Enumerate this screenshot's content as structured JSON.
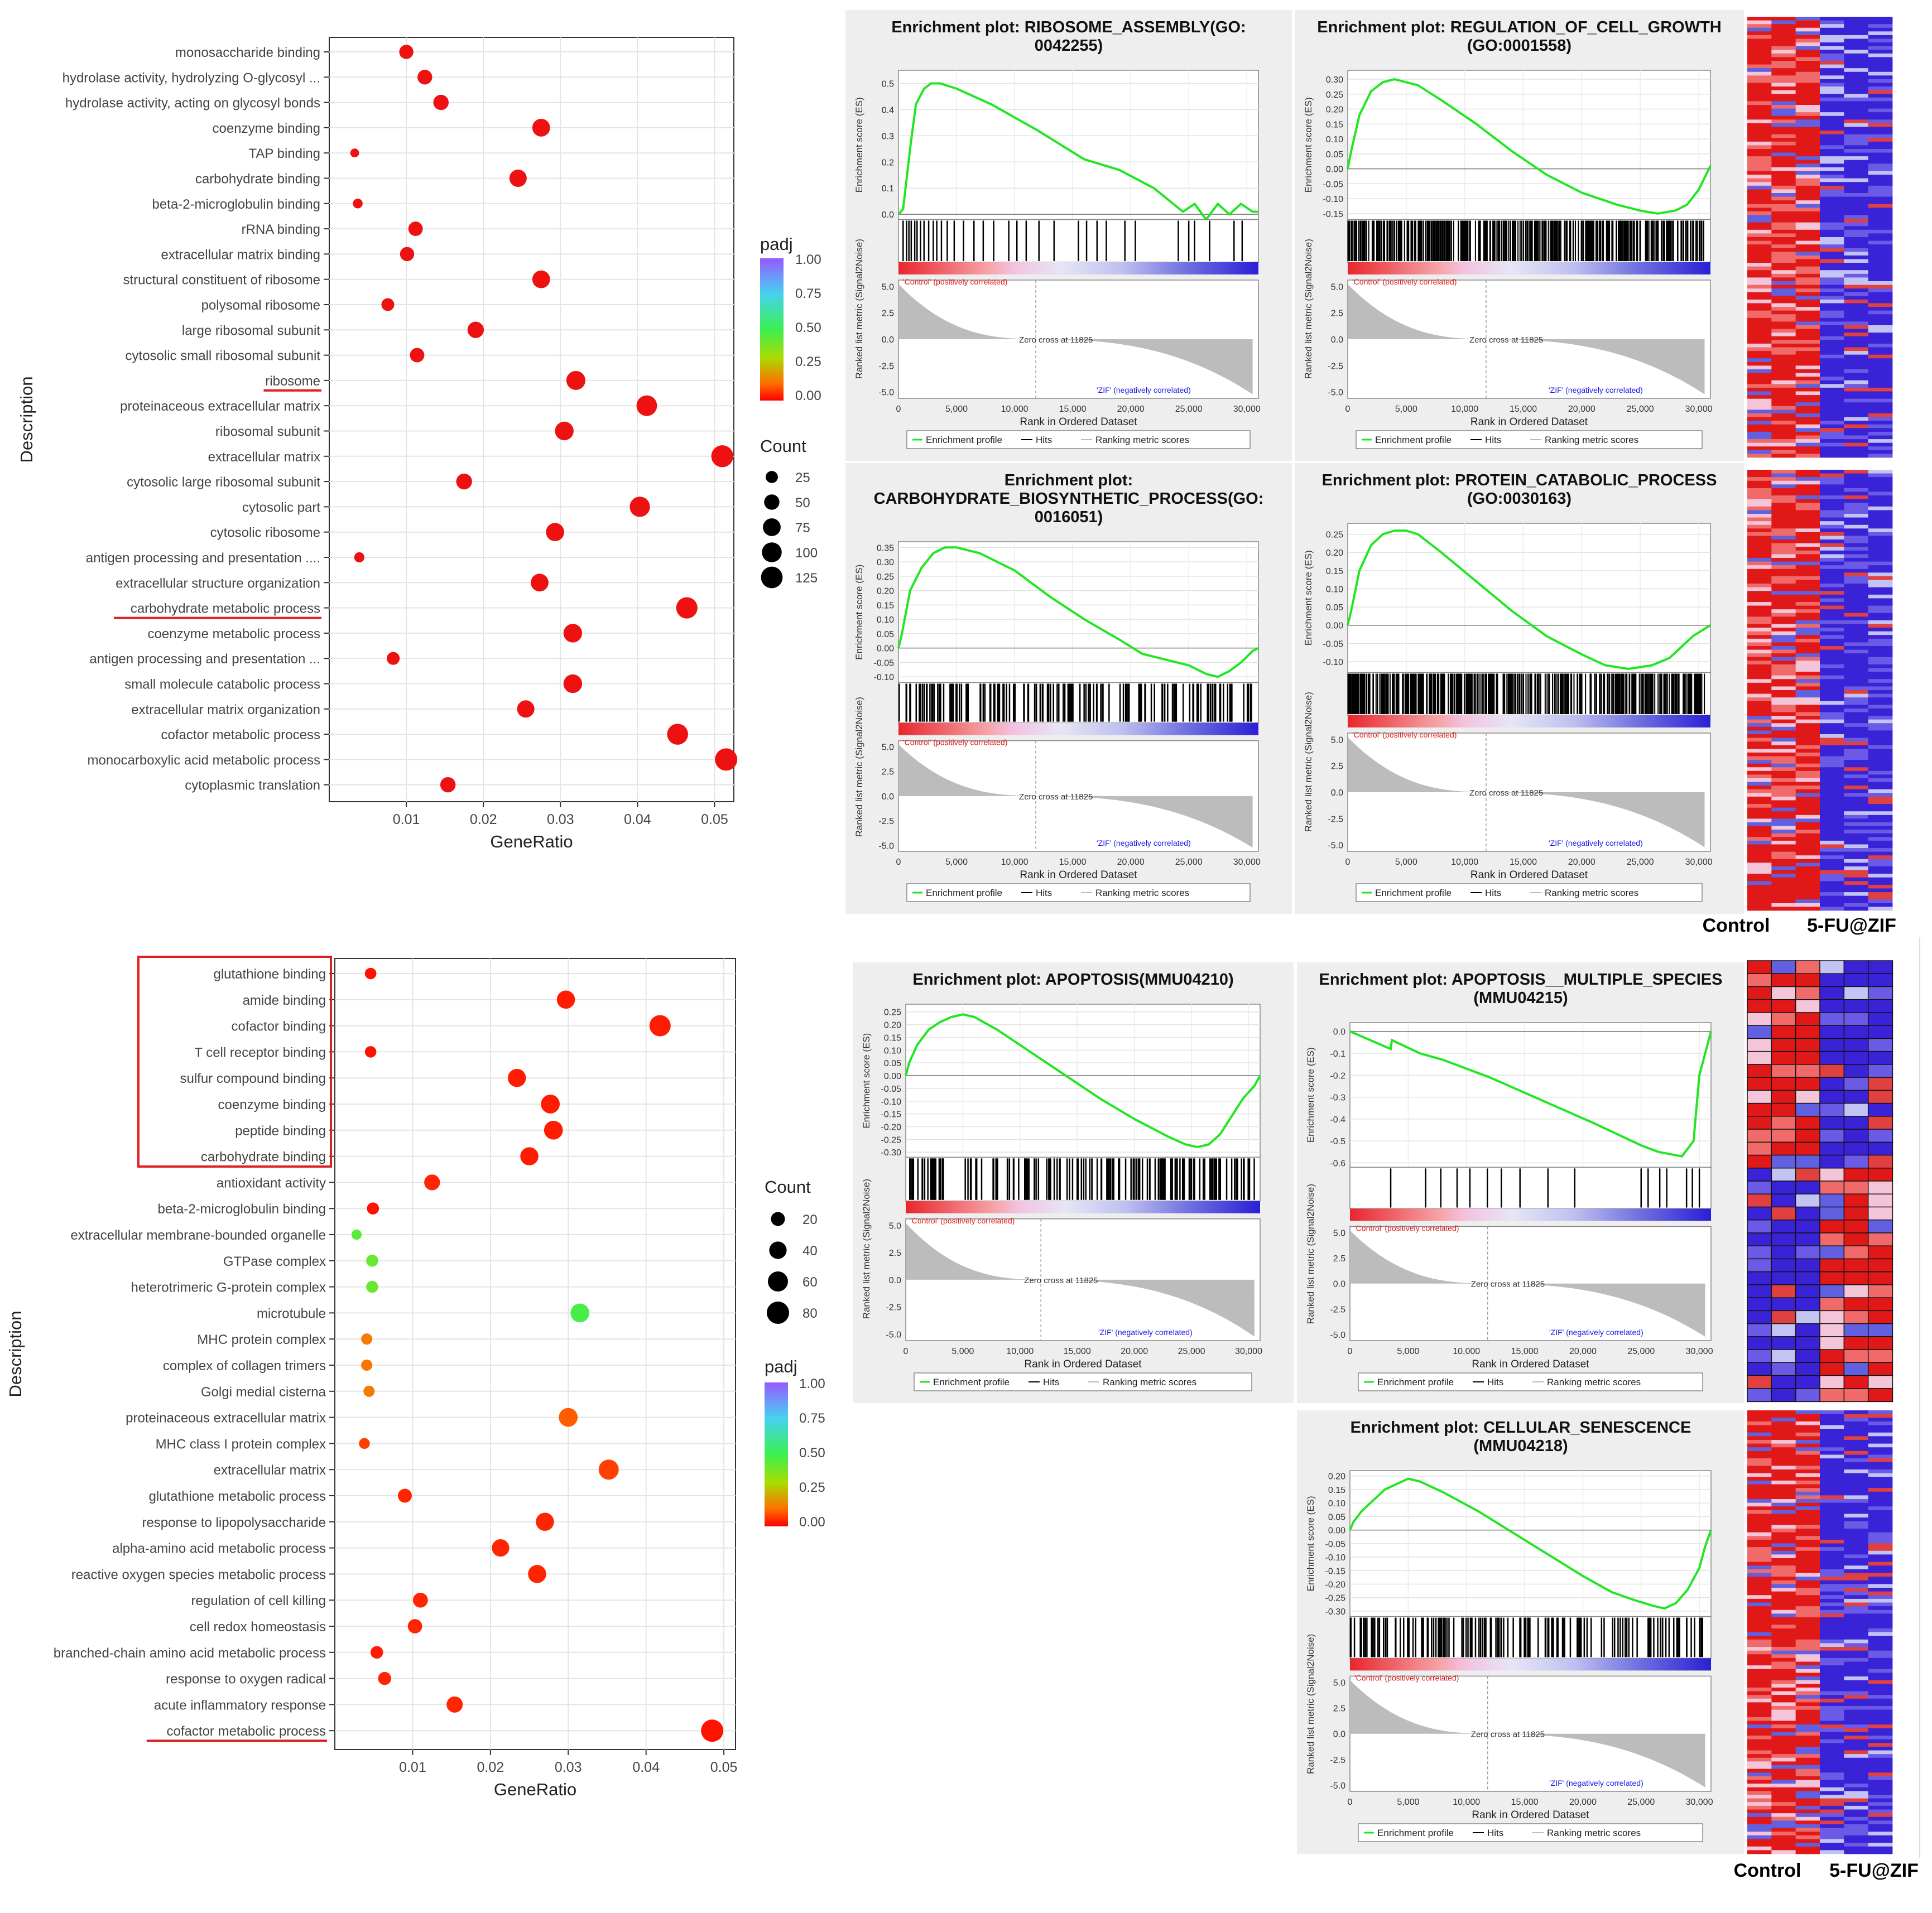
{
  "chart_data": [
    {
      "type": "scatter",
      "panel": "dotplot-top",
      "xlabel": "GeneRatio",
      "ylabel": "Description",
      "xlim": [
        0.0,
        0.0525
      ],
      "xticks": [
        0.01,
        0.02,
        0.03,
        0.04,
        0.05
      ],
      "xtick_labels": [
        "0.01",
        "0.02",
        "0.03",
        "0.04",
        "0.05"
      ],
      "categories": [
        "monosaccharide binding",
        "hydrolase activity, hydrolyzing O-glycosyl ...",
        "hydrolase activity, acting on glycosyl bonds",
        "coenzyme binding",
        "TAP binding",
        "carbohydrate binding",
        "beta-2-microglobulin binding",
        "rRNA binding",
        "extracellular matrix binding",
        "structural constituent of ribosome",
        "polysomal ribosome",
        "large ribosomal subunit",
        "cytosolic small ribosomal subunit",
        "ribosome",
        "proteinaceous extracellular matrix",
        "ribosomal subunit",
        "extracellular matrix",
        "cytosolic large ribosomal subunit",
        "cytosolic part",
        "cytosolic ribosome",
        "antigen processing and presentation ....",
        "extracellular structure organization",
        "carbohydrate metabolic process",
        "coenzyme metabolic process",
        "antigen processing and presentation ...",
        "small molecule catabolic process",
        "extracellular matrix organization",
        "cofactor metabolic process",
        "monocarboxylic acid metabolic process",
        "cytoplasmic translation"
      ],
      "gene_ratio": [
        0.01,
        0.0124,
        0.0145,
        0.0275,
        0.0033,
        0.0245,
        0.0037,
        0.0112,
        0.0101,
        0.0275,
        0.0076,
        0.019,
        0.0114,
        0.032,
        0.0412,
        0.0305,
        0.051,
        0.0175,
        0.0403,
        0.0293,
        0.0039,
        0.0273,
        0.0464,
        0.0316,
        0.0083,
        0.0316,
        0.0255,
        0.0452,
        0.0515,
        0.0154
      ],
      "count": [
        40,
        45,
        50,
        75,
        8,
        70,
        12,
        42,
        40,
        75,
        30,
        60,
        42,
        90,
        110,
        85,
        130,
        55,
        105,
        80,
        14,
        75,
        120,
        85,
        30,
        85,
        70,
        115,
        135,
        50
      ],
      "highlighted": [
        "ribosome",
        "carbohydrate metabolic process"
      ],
      "legend_padj": {
        "title": "padj",
        "ticks": [
          "1.00",
          "0.75",
          "0.50",
          "0.25",
          "0.00"
        ]
      },
      "legend_count": {
        "title": "Count",
        "values": [
          25,
          50,
          75,
          100,
          125
        ],
        "labels": [
          "25",
          "50",
          "75",
          "100",
          "125"
        ]
      }
    },
    {
      "type": "scatter",
      "panel": "dotplot-bottom",
      "xlabel": "GeneRatio",
      "ylabel": "Description",
      "xlim": [
        0.0,
        0.0515
      ],
      "xticks": [
        0.01,
        0.02,
        0.03,
        0.04,
        0.05
      ],
      "xtick_labels": [
        "0.01",
        "0.02",
        "0.03",
        "0.04",
        "0.05"
      ],
      "categories": [
        "glutathione binding",
        "amide binding",
        "cofactor binding",
        "T cell receptor binding",
        "sulfur compound binding",
        "coenzyme binding",
        "peptide binding",
        "carbohydrate binding",
        "antioxidant activity",
        "beta-2-microglobulin binding",
        "extracellular membrane-bounded organelle",
        "GTPase complex",
        "heterotrimeric G-protein complex",
        "microtubule",
        "MHC protein complex",
        "complex of collagen trimers",
        "Golgi medial cisterna",
        "proteinaceous extracellular matrix",
        "MHC class I protein complex",
        "extracellular matrix",
        "glutathione metabolic process",
        "response to lipopolysaccharide",
        "alpha-amino acid metabolic process",
        "reactive oxygen species metabolic process",
        "regulation of cell killing",
        "cell redox homeostasis",
        "branched-chain amino acid metabolic process",
        "response to oxygen radical",
        "acute inflammatory response",
        "cofactor metabolic process"
      ],
      "gene_ratio": [
        0.0046,
        0.0297,
        0.0418,
        0.0046,
        0.0234,
        0.0277,
        0.0281,
        0.025,
        0.0125,
        0.0049,
        0.0028,
        0.0048,
        0.0048,
        0.0315,
        0.0041,
        0.0041,
        0.0044,
        0.03,
        0.0038,
        0.0352,
        0.009,
        0.027,
        0.0213,
        0.026,
        0.011,
        0.0103,
        0.0054,
        0.0064,
        0.0154,
        0.0485
      ],
      "count": [
        10,
        45,
        70,
        10,
        45,
        50,
        50,
        45,
        30,
        12,
        6,
        12,
        12,
        50,
        9,
        9,
        9,
        50,
        8,
        60,
        20,
        45,
        40,
        45,
        25,
        22,
        14,
        16,
        32,
        80
      ],
      "padj": [
        0.02,
        0.03,
        0.03,
        0.02,
        0.03,
        0.03,
        0.03,
        0.03,
        0.04,
        0.02,
        0.45,
        0.42,
        0.42,
        0.48,
        0.14,
        0.13,
        0.14,
        0.1,
        0.07,
        0.07,
        0.04,
        0.04,
        0.04,
        0.04,
        0.04,
        0.04,
        0.03,
        0.04,
        0.04,
        0.02
      ],
      "highlighted": [
        "cofactor metabolic process"
      ],
      "boxed": [
        "glutathione binding",
        "amide binding",
        "cofactor binding",
        "T cell receptor binding",
        "sulfur compound binding",
        "coenzyme binding",
        "peptide binding",
        "carbohydrate binding"
      ],
      "legend_count": {
        "title": "Count",
        "values": [
          20,
          40,
          60,
          80
        ],
        "labels": [
          "20",
          "40",
          "60",
          "80"
        ]
      },
      "legend_padj": {
        "title": "padj",
        "ticks": [
          "1.00",
          "0.75",
          "0.50",
          "0.25",
          "0.00"
        ]
      }
    },
    {
      "type": "line",
      "panel": "gsea",
      "plots": [
        {
          "title": "Enrichment plot: RIBOSOME_ASSEMBLY(GO: 0042255)",
          "title_lines": [
            "Enrichment plot: RIBOSOME_ASSEMBLY(GO:",
            "0042255)"
          ],
          "ylim": [
            -0.02,
            0.55
          ],
          "yticks": [
            "0.5",
            "0.4",
            "0.3",
            "0.2",
            "0.1",
            "0.0"
          ],
          "es_x": [
            0,
            400,
            1000,
            1500,
            2200,
            2800,
            3600,
            5000,
            8000,
            12000,
            16000,
            19000,
            22000,
            24500,
            25500,
            26500,
            27500,
            28500,
            29500,
            30500,
            31000
          ],
          "es_y": [
            0,
            0.02,
            0.25,
            0.42,
            0.48,
            0.5,
            0.5,
            0.48,
            0.42,
            0.32,
            0.21,
            0.17,
            0.1,
            0.01,
            0.04,
            -0.02,
            0.04,
            0.0,
            0.04,
            0.01,
            0.01
          ],
          "hits": [
            400,
            700,
            900,
            1100,
            1400,
            1600,
            1900,
            2200,
            2600,
            3000,
            3300,
            3700,
            4200,
            4800,
            5600,
            6500,
            7300,
            8200,
            9500,
            10200,
            11000,
            12100,
            13400,
            15500,
            16200,
            17100,
            17900,
            19500,
            20400,
            24100,
            25000,
            25500,
            26800,
            28900,
            29600
          ],
          "zero_cross": "Zero cross at 11825"
        },
        {
          "title": "Enrichment plot: REGULATION_OF_CELL_GROWTH (GO:0001558)",
          "title_lines": [
            "Enrichment plot: REGULATION_OF_CELL_GROWTH",
            "(GO:0001558)"
          ],
          "ylim": [
            -0.17,
            0.33
          ],
          "yticks": [
            "0.30",
            "0.25",
            "0.20",
            "0.15",
            "0.10",
            "0.05",
            "0.00",
            "-0.05",
            "-0.10",
            "-0.15"
          ],
          "es_x": [
            0,
            300,
            1000,
            2000,
            3000,
            4000,
            5000,
            6000,
            8000,
            11000,
            14000,
            17000,
            20000,
            23000,
            25000,
            26500,
            28000,
            29000,
            30000,
            30500,
            31000
          ],
          "es_y": [
            0,
            0.06,
            0.18,
            0.26,
            0.29,
            0.3,
            0.29,
            0.28,
            0.23,
            0.15,
            0.06,
            -0.02,
            -0.08,
            -0.12,
            -0.14,
            -0.15,
            -0.14,
            -0.12,
            -0.07,
            -0.03,
            0.01
          ],
          "hits": "dense",
          "zero_cross": "Zero cross at 11825"
        },
        {
          "title": "Enrichment plot: CARBOHYDRATE_BIOSYNTHETIC_PROCESS(GO: 0016051)",
          "title_lines": [
            "Enrichment plot:",
            "CARBOHYDRATE_BIOSYNTHETIC_PROCESS(GO:",
            "0016051)"
          ],
          "ylim": [
            -0.12,
            0.37
          ],
          "yticks": [
            "0.35",
            "0.30",
            "0.25",
            "0.20",
            "0.15",
            "0.10",
            "0.05",
            "0.00",
            "-0.05",
            "-0.10"
          ],
          "es_x": [
            0,
            300,
            1000,
            2000,
            3000,
            4000,
            5000,
            7000,
            10000,
            13000,
            16000,
            19000,
            21000,
            23000,
            25000,
            26500,
            27500,
            28500,
            29500,
            30500,
            31000
          ],
          "es_y": [
            0,
            0.05,
            0.2,
            0.28,
            0.33,
            0.35,
            0.35,
            0.33,
            0.27,
            0.18,
            0.1,
            0.03,
            -0.02,
            -0.04,
            -0.06,
            -0.09,
            -0.1,
            -0.08,
            -0.05,
            -0.01,
            0.0
          ],
          "hits": "medium",
          "zero_cross": "Zero cross at 11825"
        },
        {
          "title": "Enrichment plot: PROTEIN_CATABOLIC_PROCESS (GO:0030163)",
          "title_lines": [
            "Enrichment plot: PROTEIN_CATABOLIC_PROCESS",
            "(GO:0030163)"
          ],
          "ylim": [
            -0.13,
            0.28
          ],
          "yticks": [
            "0.25",
            "0.20",
            "0.15",
            "0.10",
            "0.05",
            "0.00",
            "-0.05",
            "-0.10"
          ],
          "es_x": [
            0,
            300,
            1000,
            2000,
            3000,
            4000,
            5000,
            6000,
            8000,
            11000,
            14000,
            17000,
            20000,
            22000,
            24000,
            26000,
            27500,
            28500,
            29500,
            30500,
            31000
          ],
          "es_y": [
            0,
            0.04,
            0.15,
            0.22,
            0.25,
            0.26,
            0.26,
            0.25,
            0.2,
            0.12,
            0.04,
            -0.03,
            -0.08,
            -0.11,
            -0.12,
            -0.11,
            -0.09,
            -0.06,
            -0.03,
            -0.01,
            0.0
          ],
          "hits": "dense",
          "zero_cross": "Zero cross at 11825"
        },
        {
          "title": "Enrichment plot: APOPTOSIS(MMU04210)",
          "title_lines": [
            "Enrichment plot: APOPTOSIS(MMU04210)"
          ],
          "ylim": [
            -0.32,
            0.28
          ],
          "yticks": [
            "0.25",
            "0.20",
            "0.15",
            "0.10",
            "0.05",
            "0.00",
            "-0.05",
            "-0.10",
            "-0.15",
            "-0.20",
            "-0.25",
            "-0.30"
          ],
          "es_x": [
            0,
            300,
            1000,
            2000,
            3000,
            4000,
            5000,
            6000,
            8000,
            11000,
            14000,
            17000,
            20000,
            23000,
            24500,
            25500,
            26500,
            27500,
            28500,
            29500,
            30500,
            31000
          ],
          "es_y": [
            0,
            0.05,
            0.12,
            0.18,
            0.21,
            0.23,
            0.24,
            0.23,
            0.18,
            0.09,
            0.0,
            -0.09,
            -0.17,
            -0.24,
            -0.27,
            -0.28,
            -0.27,
            -0.23,
            -0.16,
            -0.09,
            -0.04,
            0.0
          ],
          "hits": "medium",
          "zero_cross": "Zero cross at 11825"
        },
        {
          "title": "Enrichment plot: APOPTOSIS__MULTIPLE_SPECIES (MMU04215)",
          "title_lines": [
            "Enrichment plot: APOPTOSIS__MULTIPLE_SPECIES",
            "(MMU04215)"
          ],
          "ylim": [
            -0.62,
            0.04
          ],
          "yticks": [
            "0.0",
            "-0.1",
            "-0.2",
            "-0.3",
            "-0.4",
            "-0.5",
            "-0.6"
          ],
          "es_x": [
            0,
            3500,
            3600,
            6000,
            8000,
            10000,
            12000,
            15000,
            18000,
            21000,
            23000,
            25000,
            25500,
            26500,
            27500,
            28500,
            29500,
            30000,
            30500,
            31000
          ],
          "es_y": [
            0,
            -0.08,
            -0.04,
            -0.1,
            -0.13,
            -0.17,
            -0.21,
            -0.28,
            -0.35,
            -0.42,
            -0.47,
            -0.52,
            -0.53,
            -0.55,
            -0.56,
            -0.57,
            -0.5,
            -0.2,
            -0.1,
            0.0
          ],
          "hits": [
            3500,
            6500,
            7800,
            9200,
            10300,
            11800,
            13000,
            14600,
            17000,
            19300,
            25000,
            25600,
            26600,
            27200,
            28900,
            29400,
            30000
          ],
          "zero_cross": "Zero cross at 11825"
        },
        {
          "title": "Enrichment plot: CELLULAR_SENESCENCE (MMU04218)",
          "title_lines": [
            "Enrichment plot: CELLULAR_SENESCENCE",
            "(MMU04218)"
          ],
          "ylim": [
            -0.32,
            0.22
          ],
          "yticks": [
            "0.20",
            "0.15",
            "0.10",
            "0.05",
            "0.00",
            "-0.05",
            "-0.10",
            "-0.15",
            "-0.20",
            "-0.25",
            "-0.30"
          ],
          "es_x": [
            0,
            300,
            1000,
            2000,
            3000,
            4000,
            5000,
            6000,
            8000,
            11000,
            14000,
            17000,
            20000,
            22500,
            24500,
            26000,
            27000,
            28000,
            29000,
            30000,
            30500,
            31000
          ],
          "es_y": [
            0,
            0.03,
            0.07,
            0.11,
            0.15,
            0.17,
            0.19,
            0.18,
            0.14,
            0.07,
            -0.01,
            -0.09,
            -0.17,
            -0.23,
            -0.26,
            -0.28,
            -0.29,
            -0.27,
            -0.22,
            -0.14,
            -0.06,
            0.0
          ],
          "hits": "medium",
          "zero_cross": "Zero cross at 11825"
        }
      ],
      "common": {
        "xlabel": "Rank in Ordered Dataset",
        "ylabel_es": "Enrichment score (ES)",
        "ylabel_metric": "Ranked list metric (Signal2Noise)",
        "xlim": [
          0,
          31000
        ],
        "xticks": [
          "0",
          "5,000",
          "10,000",
          "15,000",
          "20,000",
          "25,000",
          "30,000"
        ],
        "metric_ticks": [
          "5.0",
          "2.5",
          "0.0",
          "-2.5",
          "-5.0"
        ],
        "pos_label": "'Control' (positively correlated)",
        "neg_label": "'ZIF' (negatively correlated)",
        "legend": [
          "Enrichment profile",
          "Hits",
          "Ranking metric scores"
        ]
      }
    },
    {
      "type": "heatmap",
      "panel": "heatmaps",
      "groups": [
        "Control",
        "5-FU@ZIF"
      ],
      "labels_top": [
        "Control",
        "5-FU@ZIF"
      ],
      "labels_bottom": [
        "Control",
        "5-FU@ZIF"
      ]
    }
  ]
}
